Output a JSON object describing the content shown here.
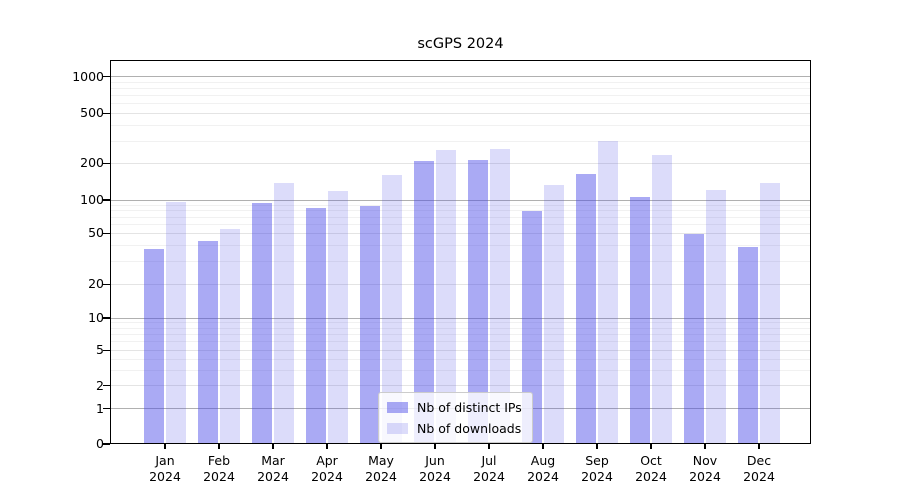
{
  "figure": {
    "title": "scGPS 2024",
    "background": "#ffffff"
  },
  "chart_data": {
    "type": "bar",
    "title": "scGPS 2024",
    "xlabel": "",
    "ylabel": "",
    "yscale": "symlog",
    "ylim": [
      0,
      1400
    ],
    "grid": "horizontal major and minor",
    "legend_position": "lower center",
    "y_ticks": [
      "0",
      "1",
      "2",
      "5",
      "10",
      "20",
      "50",
      "100",
      "200",
      "500",
      "1000"
    ],
    "categories": [
      {
        "month": "Jan",
        "year": "2024"
      },
      {
        "month": "Feb",
        "year": "2024"
      },
      {
        "month": "Mar",
        "year": "2024"
      },
      {
        "month": "Apr",
        "year": "2024"
      },
      {
        "month": "May",
        "year": "2024"
      },
      {
        "month": "Jun",
        "year": "2024"
      },
      {
        "month": "Jul",
        "year": "2024"
      },
      {
        "month": "Aug",
        "year": "2024"
      },
      {
        "month": "Sep",
        "year": "2024"
      },
      {
        "month": "Oct",
        "year": "2024"
      },
      {
        "month": "Nov",
        "year": "2024"
      },
      {
        "month": "Dec",
        "year": "2024"
      }
    ],
    "series": [
      {
        "name": "Nb of distinct IPs",
        "color": "rgba(70,70,230,0.46)",
        "values": [
          38,
          44,
          94,
          85,
          88,
          210,
          215,
          80,
          165,
          105,
          50,
          39
        ]
      },
      {
        "name": "Nb of downloads",
        "color": "rgba(70,70,230,0.19)",
        "values": [
          96,
          55,
          137,
          118,
          160,
          255,
          260,
          132,
          305,
          235,
          120,
          138
        ]
      }
    ]
  },
  "colors": {
    "major_grid": "#b0b0b0",
    "mid_grid": "#e4e4e4",
    "minor_grid": "#f1f1f1",
    "axis": "#000000",
    "bar_dark": "rgba(70,70,230,0.46)",
    "bar_light": "rgba(70,70,230,0.19)"
  }
}
